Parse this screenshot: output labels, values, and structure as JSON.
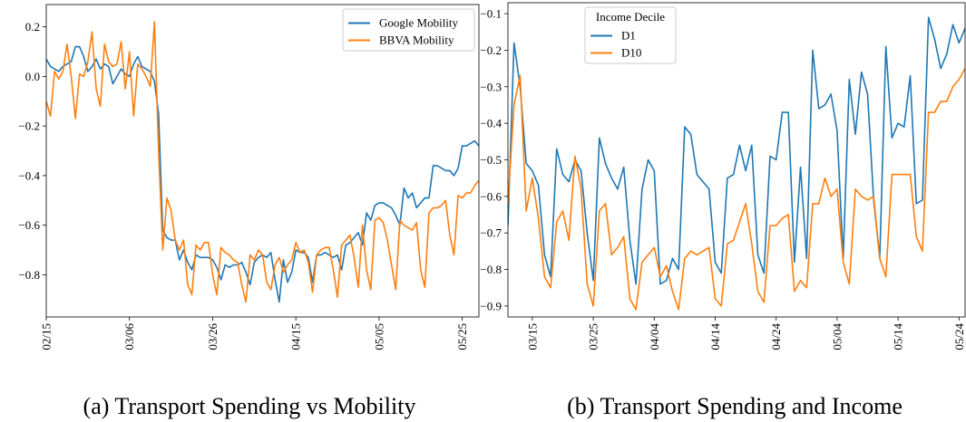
{
  "chart_data": [
    {
      "type": "line",
      "title": "(a) Transport Spending vs Mobility",
      "x": [
        "02/15",
        "02/16",
        "02/17",
        "02/18",
        "02/19",
        "02/20",
        "02/21",
        "02/22",
        "02/23",
        "02/24",
        "02/25",
        "02/26",
        "02/27",
        "02/28",
        "02/29",
        "03/01",
        "03/02",
        "03/03",
        "03/04",
        "03/05",
        "03/06",
        "03/07",
        "03/08",
        "03/09",
        "03/10",
        "03/11",
        "03/12",
        "03/13",
        "03/14",
        "03/15",
        "03/16",
        "03/17",
        "03/18",
        "03/19",
        "03/20",
        "03/21",
        "03/22",
        "03/23",
        "03/24",
        "03/25",
        "03/26",
        "03/27",
        "03/28",
        "03/29",
        "03/30",
        "03/31",
        "04/01",
        "04/02",
        "04/03",
        "04/04",
        "04/05",
        "04/06",
        "04/07",
        "04/08",
        "04/09",
        "04/10",
        "04/11",
        "04/12",
        "04/13",
        "04/14",
        "04/15",
        "04/16",
        "04/17",
        "04/18",
        "04/19",
        "04/20",
        "04/21",
        "04/22",
        "04/23",
        "04/24",
        "04/25",
        "04/26",
        "04/27",
        "04/28",
        "04/29",
        "04/30",
        "05/01",
        "05/02",
        "05/03",
        "05/04",
        "05/05",
        "05/06",
        "05/07",
        "05/08",
        "05/09",
        "05/10",
        "05/11",
        "05/12",
        "05/13",
        "05/14",
        "05/15",
        "05/16",
        "05/17",
        "05/18",
        "05/19",
        "05/20",
        "05/21",
        "05/22",
        "05/23",
        "05/24",
        "05/25",
        "05/26",
        "05/27",
        "05/28",
        "05/29"
      ],
      "series": [
        {
          "name": "Google Mobility",
          "color": "#1f77b4",
          "values": [
            0.07,
            0.04,
            0.03,
            0.02,
            0.04,
            0.05,
            0.06,
            0.12,
            0.12,
            0.08,
            0.02,
            0.04,
            0.07,
            0.03,
            0.05,
            0.04,
            -0.03,
            0.0,
            0.03,
            0.01,
            0.0,
            0.05,
            0.08,
            0.04,
            0.03,
            0.02,
            -0.02,
            -0.15,
            -0.62,
            -0.65,
            -0.66,
            -0.66,
            -0.74,
            -0.7,
            -0.75,
            -0.78,
            -0.72,
            -0.73,
            -0.73,
            -0.73,
            -0.74,
            -0.77,
            -0.82,
            -0.76,
            -0.77,
            -0.76,
            -0.76,
            -0.75,
            -0.79,
            -0.84,
            -0.75,
            -0.73,
            -0.72,
            -0.73,
            -0.71,
            -0.82,
            -0.91,
            -0.74,
            -0.83,
            -0.79,
            -0.7,
            -0.71,
            -0.71,
            -0.73,
            -0.83,
            -0.72,
            -0.72,
            -0.71,
            -0.72,
            -0.73,
            -0.72,
            -0.78,
            -0.68,
            -0.67,
            -0.65,
            -0.63,
            -0.68,
            -0.55,
            -0.58,
            -0.52,
            -0.51,
            -0.51,
            -0.52,
            -0.53,
            -0.56,
            -0.6,
            -0.45,
            -0.49,
            -0.47,
            -0.53,
            -0.51,
            -0.49,
            -0.49,
            -0.36,
            -0.36,
            -0.37,
            -0.38,
            -0.38,
            -0.4,
            -0.37,
            -0.28,
            -0.28,
            -0.27,
            -0.26,
            -0.28
          ]
        },
        {
          "name": "BBVA Mobility",
          "color": "#ff7f0e",
          "values": [
            -0.1,
            -0.16,
            0.02,
            -0.01,
            0.02,
            0.13,
            0.0,
            -0.17,
            0.01,
            0.0,
            0.06,
            0.18,
            -0.05,
            -0.12,
            0.13,
            0.06,
            0.04,
            0.05,
            0.14,
            -0.05,
            0.1,
            -0.16,
            0.05,
            0.03,
            0.0,
            -0.04,
            0.22,
            -0.3,
            -0.7,
            -0.49,
            -0.54,
            -0.66,
            -0.7,
            -0.66,
            -0.84,
            -0.88,
            -0.68,
            -0.7,
            -0.67,
            -0.67,
            -0.8,
            -0.88,
            -0.69,
            -0.71,
            -0.72,
            -0.74,
            -0.75,
            -0.84,
            -0.91,
            -0.72,
            -0.74,
            -0.7,
            -0.72,
            -0.83,
            -0.86,
            -0.76,
            -0.73,
            -0.79,
            -0.76,
            -0.74,
            -0.67,
            -0.71,
            -0.7,
            -0.75,
            -0.87,
            -0.72,
            -0.7,
            -0.69,
            -0.69,
            -0.78,
            -0.89,
            -0.68,
            -0.66,
            -0.64,
            -0.73,
            -0.85,
            -0.6,
            -0.78,
            -0.86,
            -0.58,
            -0.57,
            -0.59,
            -0.66,
            -0.76,
            -0.86,
            -0.58,
            -0.6,
            -0.61,
            -0.62,
            -0.59,
            -0.78,
            -0.85,
            -0.55,
            -0.53,
            -0.53,
            -0.52,
            -0.5,
            -0.64,
            -0.72,
            -0.48,
            -0.49,
            -0.47,
            -0.47,
            -0.44,
            -0.42
          ]
        }
      ],
      "ylim": [
        -0.97,
        0.29
      ],
      "yticks": [
        {
          "value": -0.8,
          "label": "−0.8"
        },
        {
          "value": -0.6,
          "label": "−0.6"
        },
        {
          "value": -0.4,
          "label": "−0.4"
        },
        {
          "value": -0.2,
          "label": "−0.2"
        },
        {
          "value": 0.0,
          "label": "0.0"
        },
        0.2
      ],
      "xticks": [
        "02/15",
        "03/06",
        "03/26",
        "04/15",
        "05/05",
        "05/25"
      ],
      "legend": "upper right"
    },
    {
      "type": "line",
      "title": "(b) Transport Spending and Income",
      "x": [
        "03/11",
        "03/12",
        "03/13",
        "03/14",
        "03/15",
        "03/16",
        "03/17",
        "03/18",
        "03/19",
        "03/20",
        "03/21",
        "03/22",
        "03/23",
        "03/24",
        "03/25",
        "03/26",
        "03/27",
        "03/28",
        "03/29",
        "03/30",
        "03/31",
        "04/01",
        "04/02",
        "04/03",
        "04/04",
        "04/05",
        "04/06",
        "04/07",
        "04/08",
        "04/09",
        "04/10",
        "04/11",
        "04/12",
        "04/13",
        "04/14",
        "04/15",
        "04/16",
        "04/17",
        "04/18",
        "04/19",
        "04/20",
        "04/21",
        "04/22",
        "04/23",
        "04/24",
        "04/25",
        "04/26",
        "04/27",
        "04/28",
        "04/29",
        "04/30",
        "05/01",
        "05/02",
        "05/03",
        "05/04",
        "05/05",
        "05/06",
        "05/07",
        "05/08",
        "05/09",
        "05/10",
        "05/11",
        "05/12",
        "05/13",
        "05/14",
        "05/15",
        "05/16",
        "05/17",
        "05/18",
        "05/19",
        "05/20",
        "05/21",
        "05/22",
        "05/23",
        "05/24",
        "05/25"
      ],
      "legend_title": "Income Decile",
      "series": [
        {
          "name": "D1",
          "color": "#1f77b4",
          "values": [
            -0.68,
            -0.18,
            -0.3,
            -0.51,
            -0.53,
            -0.57,
            -0.76,
            -0.82,
            -0.47,
            -0.54,
            -0.56,
            -0.5,
            -0.53,
            -0.7,
            -0.83,
            -0.44,
            -0.51,
            -0.55,
            -0.58,
            -0.52,
            -0.72,
            -0.84,
            -0.58,
            -0.5,
            -0.53,
            -0.84,
            -0.83,
            -0.77,
            -0.8,
            -0.41,
            -0.43,
            -0.54,
            -0.56,
            -0.58,
            -0.78,
            -0.81,
            -0.55,
            -0.54,
            -0.46,
            -0.53,
            -0.46,
            -0.76,
            -0.81,
            -0.49,
            -0.5,
            -0.37,
            -0.37,
            -0.78,
            -0.52,
            -0.77,
            -0.2,
            -0.36,
            -0.35,
            -0.32,
            -0.42,
            -0.77,
            -0.28,
            -0.43,
            -0.26,
            -0.32,
            -0.61,
            -0.77,
            -0.19,
            -0.44,
            -0.4,
            -0.41,
            -0.27,
            -0.62,
            -0.61,
            -0.11,
            -0.17,
            -0.25,
            -0.21,
            -0.13,
            -0.18,
            -0.14
          ]
        },
        {
          "name": "D10",
          "color": "#ff7f0e",
          "values": [
            -0.62,
            -0.35,
            -0.27,
            -0.64,
            -0.55,
            -0.66,
            -0.82,
            -0.85,
            -0.67,
            -0.64,
            -0.72,
            -0.49,
            -0.58,
            -0.84,
            -0.9,
            -0.64,
            -0.62,
            -0.76,
            -0.74,
            -0.71,
            -0.88,
            -0.91,
            -0.78,
            -0.76,
            -0.74,
            -0.82,
            -0.79,
            -0.86,
            -0.91,
            -0.77,
            -0.75,
            -0.76,
            -0.75,
            -0.74,
            -0.88,
            -0.9,
            -0.73,
            -0.72,
            -0.67,
            -0.62,
            -0.73,
            -0.86,
            -0.89,
            -0.68,
            -0.68,
            -0.66,
            -0.65,
            -0.86,
            -0.83,
            -0.85,
            -0.62,
            -0.62,
            -0.55,
            -0.6,
            -0.58,
            -0.78,
            -0.84,
            -0.58,
            -0.6,
            -0.61,
            -0.6,
            -0.77,
            -0.82,
            -0.54,
            -0.54,
            -0.54,
            -0.54,
            -0.71,
            -0.75,
            -0.37,
            -0.37,
            -0.34,
            -0.34,
            -0.3,
            -0.28,
            -0.25
          ]
        }
      ],
      "ylim": [
        -0.93,
        -0.07
      ],
      "yticks": [
        {
          "value": -0.9,
          "label": "−0.9"
        },
        {
          "value": -0.8,
          "label": "−0.8"
        },
        {
          "value": -0.7,
          "label": "−0.7"
        },
        {
          "value": -0.6,
          "label": "−0.6"
        },
        {
          "value": -0.5,
          "label": "−0.5"
        },
        {
          "value": -0.4,
          "label": "−0.4"
        },
        {
          "value": -0.3,
          "label": "−0.3"
        },
        {
          "value": -0.2,
          "label": "−0.2"
        },
        {
          "value": -0.1,
          "label": "−0.1"
        }
      ],
      "xticks": [
        "03/15",
        "03/25",
        "04/04",
        "04/14",
        "04/24",
        "05/04",
        "05/14",
        "05/24"
      ],
      "legend": "upper left"
    }
  ]
}
